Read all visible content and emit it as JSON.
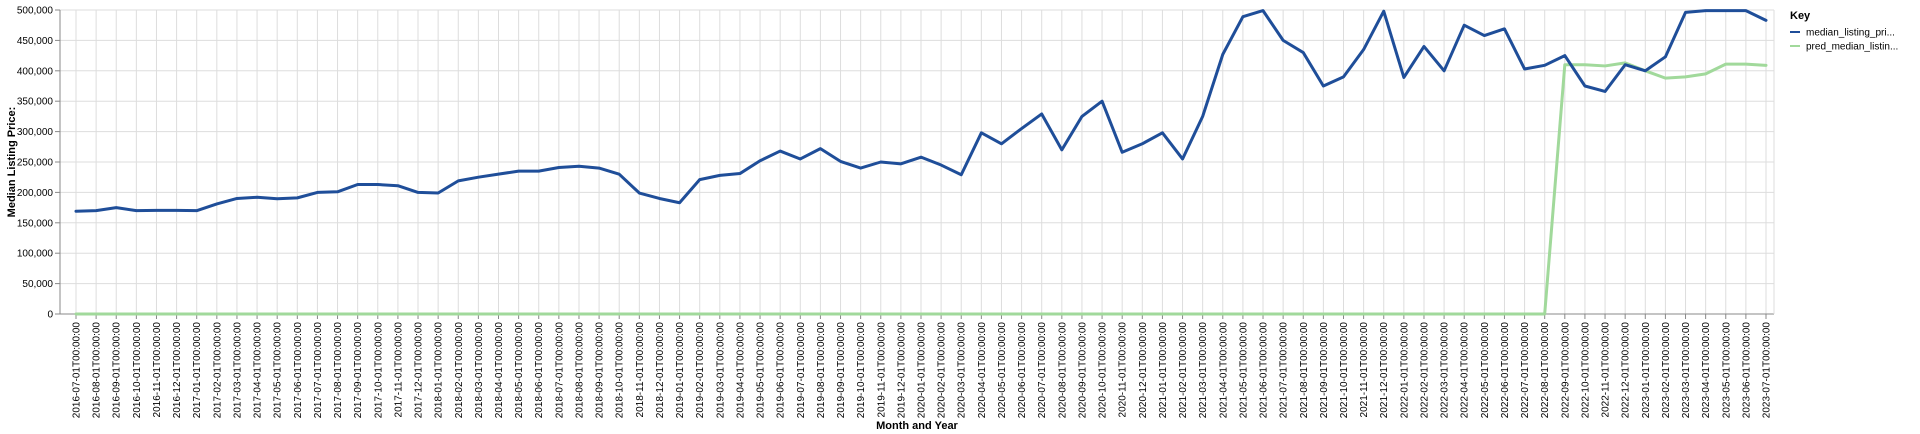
{
  "chart_data": {
    "type": "line",
    "title": "",
    "xlabel": "Month and Year",
    "ylabel": "Median Listing Price:",
    "ylim": [
      0,
      500000
    ],
    "yticks": [
      "0",
      "50,000",
      "100,000",
      "150,000",
      "200,000",
      "250,000",
      "300,000",
      "350,000",
      "400,000",
      "450,000",
      "500,000"
    ],
    "grid": true,
    "legend_title": "Key",
    "legend_position": "top-right",
    "x": [
      "2016-07-01T00:00:00",
      "2016-08-01T00:00:00",
      "2016-09-01T00:00:00",
      "2016-10-01T00:00:00",
      "2016-11-01T00:00:00",
      "2016-12-01T00:00:00",
      "2017-01-01T00:00:00",
      "2017-02-01T00:00:00",
      "2017-03-01T00:00:00",
      "2017-04-01T00:00:00",
      "2017-05-01T00:00:00",
      "2017-06-01T00:00:00",
      "2017-07-01T00:00:00",
      "2017-08-01T00:00:00",
      "2017-09-01T00:00:00",
      "2017-10-01T00:00:00",
      "2017-11-01T00:00:00",
      "2017-12-01T00:00:00",
      "2018-01-01T00:00:00",
      "2018-02-01T00:00:00",
      "2018-03-01T00:00:00",
      "2018-04-01T00:00:00",
      "2018-05-01T00:00:00",
      "2018-06-01T00:00:00",
      "2018-07-01T00:00:00",
      "2018-08-01T00:00:00",
      "2018-09-01T00:00:00",
      "2018-10-01T00:00:00",
      "2018-11-01T00:00:00",
      "2018-12-01T00:00:00",
      "2019-01-01T00:00:00",
      "2019-02-01T00:00:00",
      "2019-03-01T00:00:00",
      "2019-04-01T00:00:00",
      "2019-05-01T00:00:00",
      "2019-06-01T00:00:00",
      "2019-07-01T00:00:00",
      "2019-08-01T00:00:00",
      "2019-09-01T00:00:00",
      "2019-10-01T00:00:00",
      "2019-11-01T00:00:00",
      "2019-12-01T00:00:00",
      "2020-01-01T00:00:00",
      "2020-02-01T00:00:00",
      "2020-03-01T00:00:00",
      "2020-04-01T00:00:00",
      "2020-05-01T00:00:00",
      "2020-06-01T00:00:00",
      "2020-07-01T00:00:00",
      "2020-08-01T00:00:00",
      "2020-09-01T00:00:00",
      "2020-10-01T00:00:00",
      "2020-11-01T00:00:00",
      "2020-12-01T00:00:00",
      "2021-01-01T00:00:00",
      "2021-02-01T00:00:00",
      "2021-03-01T00:00:00",
      "2021-04-01T00:00:00",
      "2021-05-01T00:00:00",
      "2021-06-01T00:00:00",
      "2021-07-01T00:00:00",
      "2021-08-01T00:00:00",
      "2021-09-01T00:00:00",
      "2021-10-01T00:00:00",
      "2021-11-01T00:00:00",
      "2021-12-01T00:00:00",
      "2022-01-01T00:00:00",
      "2022-02-01T00:00:00",
      "2022-03-01T00:00:00",
      "2022-04-01T00:00:00",
      "2022-05-01T00:00:00",
      "2022-06-01T00:00:00",
      "2022-07-01T00:00:00",
      "2022-08-01T00:00:00",
      "2022-09-01T00:00:00",
      "2022-10-01T00:00:00",
      "2022-11-01T00:00:00",
      "2022-12-01T00:00:00",
      "2023-01-01T00:00:00",
      "2023-02-01T00:00:00",
      "2023-03-01T00:00:00",
      "2023-04-01T00:00:00",
      "2023-05-01T00:00:00",
      "2023-06-01T00:00:00",
      "2023-07-01T00:00:00"
    ],
    "series": [
      {
        "name": "median_listing_pri...",
        "color": "#1f4e99",
        "values": [
          169000,
          170000,
          175000,
          170000,
          170500,
          170500,
          170000,
          181000,
          190000,
          192000,
          189500,
          191000,
          200000,
          201000,
          213000,
          213000,
          211000,
          200000,
          199000,
          219000,
          225000,
          230000,
          235000,
          235000,
          241000,
          243000,
          240000,
          230000,
          199000,
          190000,
          183000,
          221000,
          228000,
          231000,
          252000,
          268000,
          255000,
          272000,
          251000,
          240000,
          250000,
          247000,
          258000,
          245000,
          229000,
          298000,
          280000,
          305000,
          329000,
          270000,
          325000,
          350000,
          266000,
          280000,
          298000,
          255000,
          325000,
          427000,
          489000,
          499000,
          450000,
          430000,
          375000,
          390000,
          435000,
          498000,
          389000,
          440000,
          400000,
          475000,
          458000,
          469000,
          403000,
          409000,
          425000,
          375000,
          366000,
          410000,
          400000,
          423000,
          496000,
          499000,
          499000,
          499000,
          483000
        ]
      },
      {
        "name": "pred_median_listin...",
        "color": "#a1d99b",
        "values": [
          0,
          0,
          0,
          0,
          0,
          0,
          0,
          0,
          0,
          0,
          0,
          0,
          0,
          0,
          0,
          0,
          0,
          0,
          0,
          0,
          0,
          0,
          0,
          0,
          0,
          0,
          0,
          0,
          0,
          0,
          0,
          0,
          0,
          0,
          0,
          0,
          0,
          0,
          0,
          0,
          0,
          0,
          0,
          0,
          0,
          0,
          0,
          0,
          0,
          0,
          0,
          0,
          0,
          0,
          0,
          0,
          0,
          0,
          0,
          0,
          0,
          0,
          0,
          0,
          0,
          0,
          0,
          0,
          0,
          0,
          0,
          0,
          0,
          0,
          410000,
          410000,
          408000,
          413000,
          400000,
          388000,
          390000,
          395000,
          411000,
          411000,
          409000
        ]
      }
    ]
  }
}
